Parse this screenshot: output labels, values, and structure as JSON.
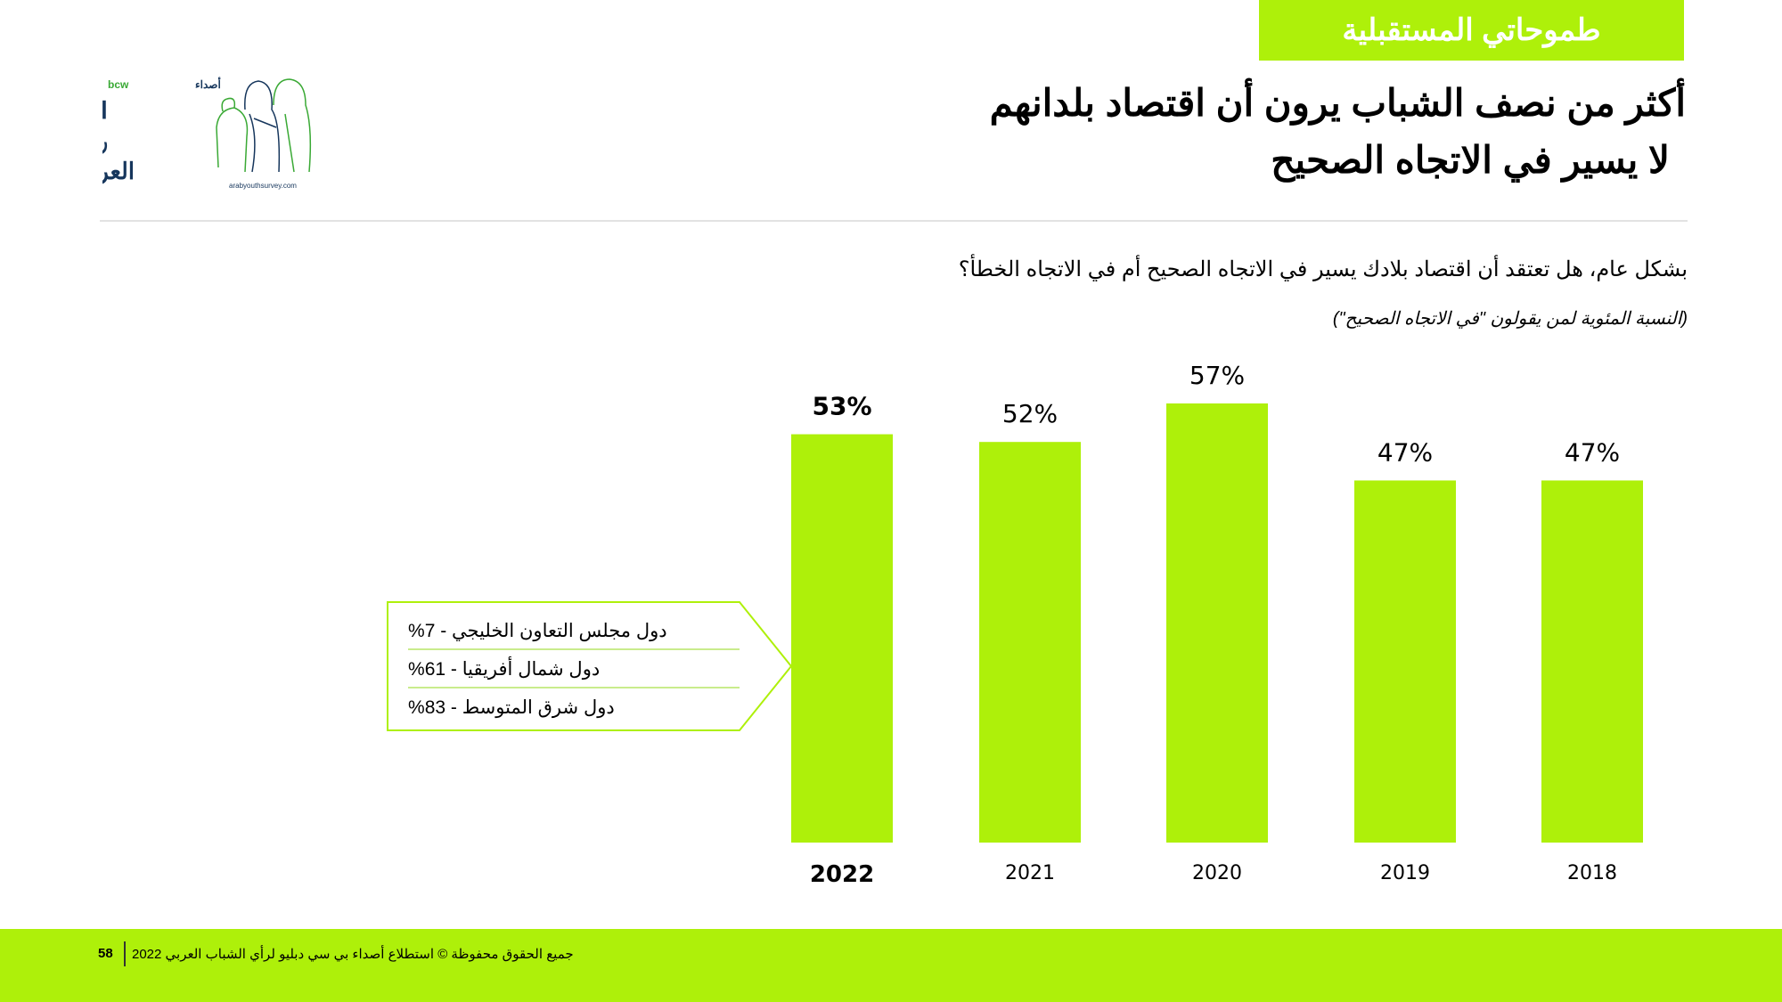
{
  "banner": {
    "label": "طموحاتي المستقبلية"
  },
  "title": {
    "line1": "أكثر من نصف الشباب يرون أن اقتصاد بلدانهم",
    "line2": "لا يسير في الاتجاه الصحيح"
  },
  "logo": {
    "brand": "bcw أصداء",
    "name": "استطلاع رأي الشباب العربي",
    "url": "arabyouthsurvey.com"
  },
  "question": "بشكل عام، هل تعتقد أن اقتصاد بلادك يسير في الاتجاه الصحيح أم في الاتجاه الخطأ؟",
  "note": "(النسبة المئوية لمن يقولون \"في الاتجاه الصحيح\")",
  "callout": {
    "rows": [
      "دول مجلس التعاون الخليجي - 7%",
      "دول شمال أفريقيا  - 61%",
      "دول شرق المتوسط  - 83%"
    ]
  },
  "chart_data": {
    "type": "bar",
    "categories": [
      "2022",
      "2021",
      "2020",
      "2019",
      "2018"
    ],
    "values": [
      53,
      52,
      57,
      47,
      47
    ],
    "labels": [
      "53%",
      "52%",
      "57%",
      "47%",
      "47%"
    ],
    "highlight": "2022",
    "ylim": [
      0,
      60
    ],
    "bar_color": "#aef00a",
    "title": "",
    "xlabel": "",
    "ylabel": ""
  },
  "footer": {
    "page": "58",
    "copyright": "جميع الحقوق محفوظة © استطلاع أصداء بي سي دبليو لرأي الشباب العربي 2022"
  }
}
